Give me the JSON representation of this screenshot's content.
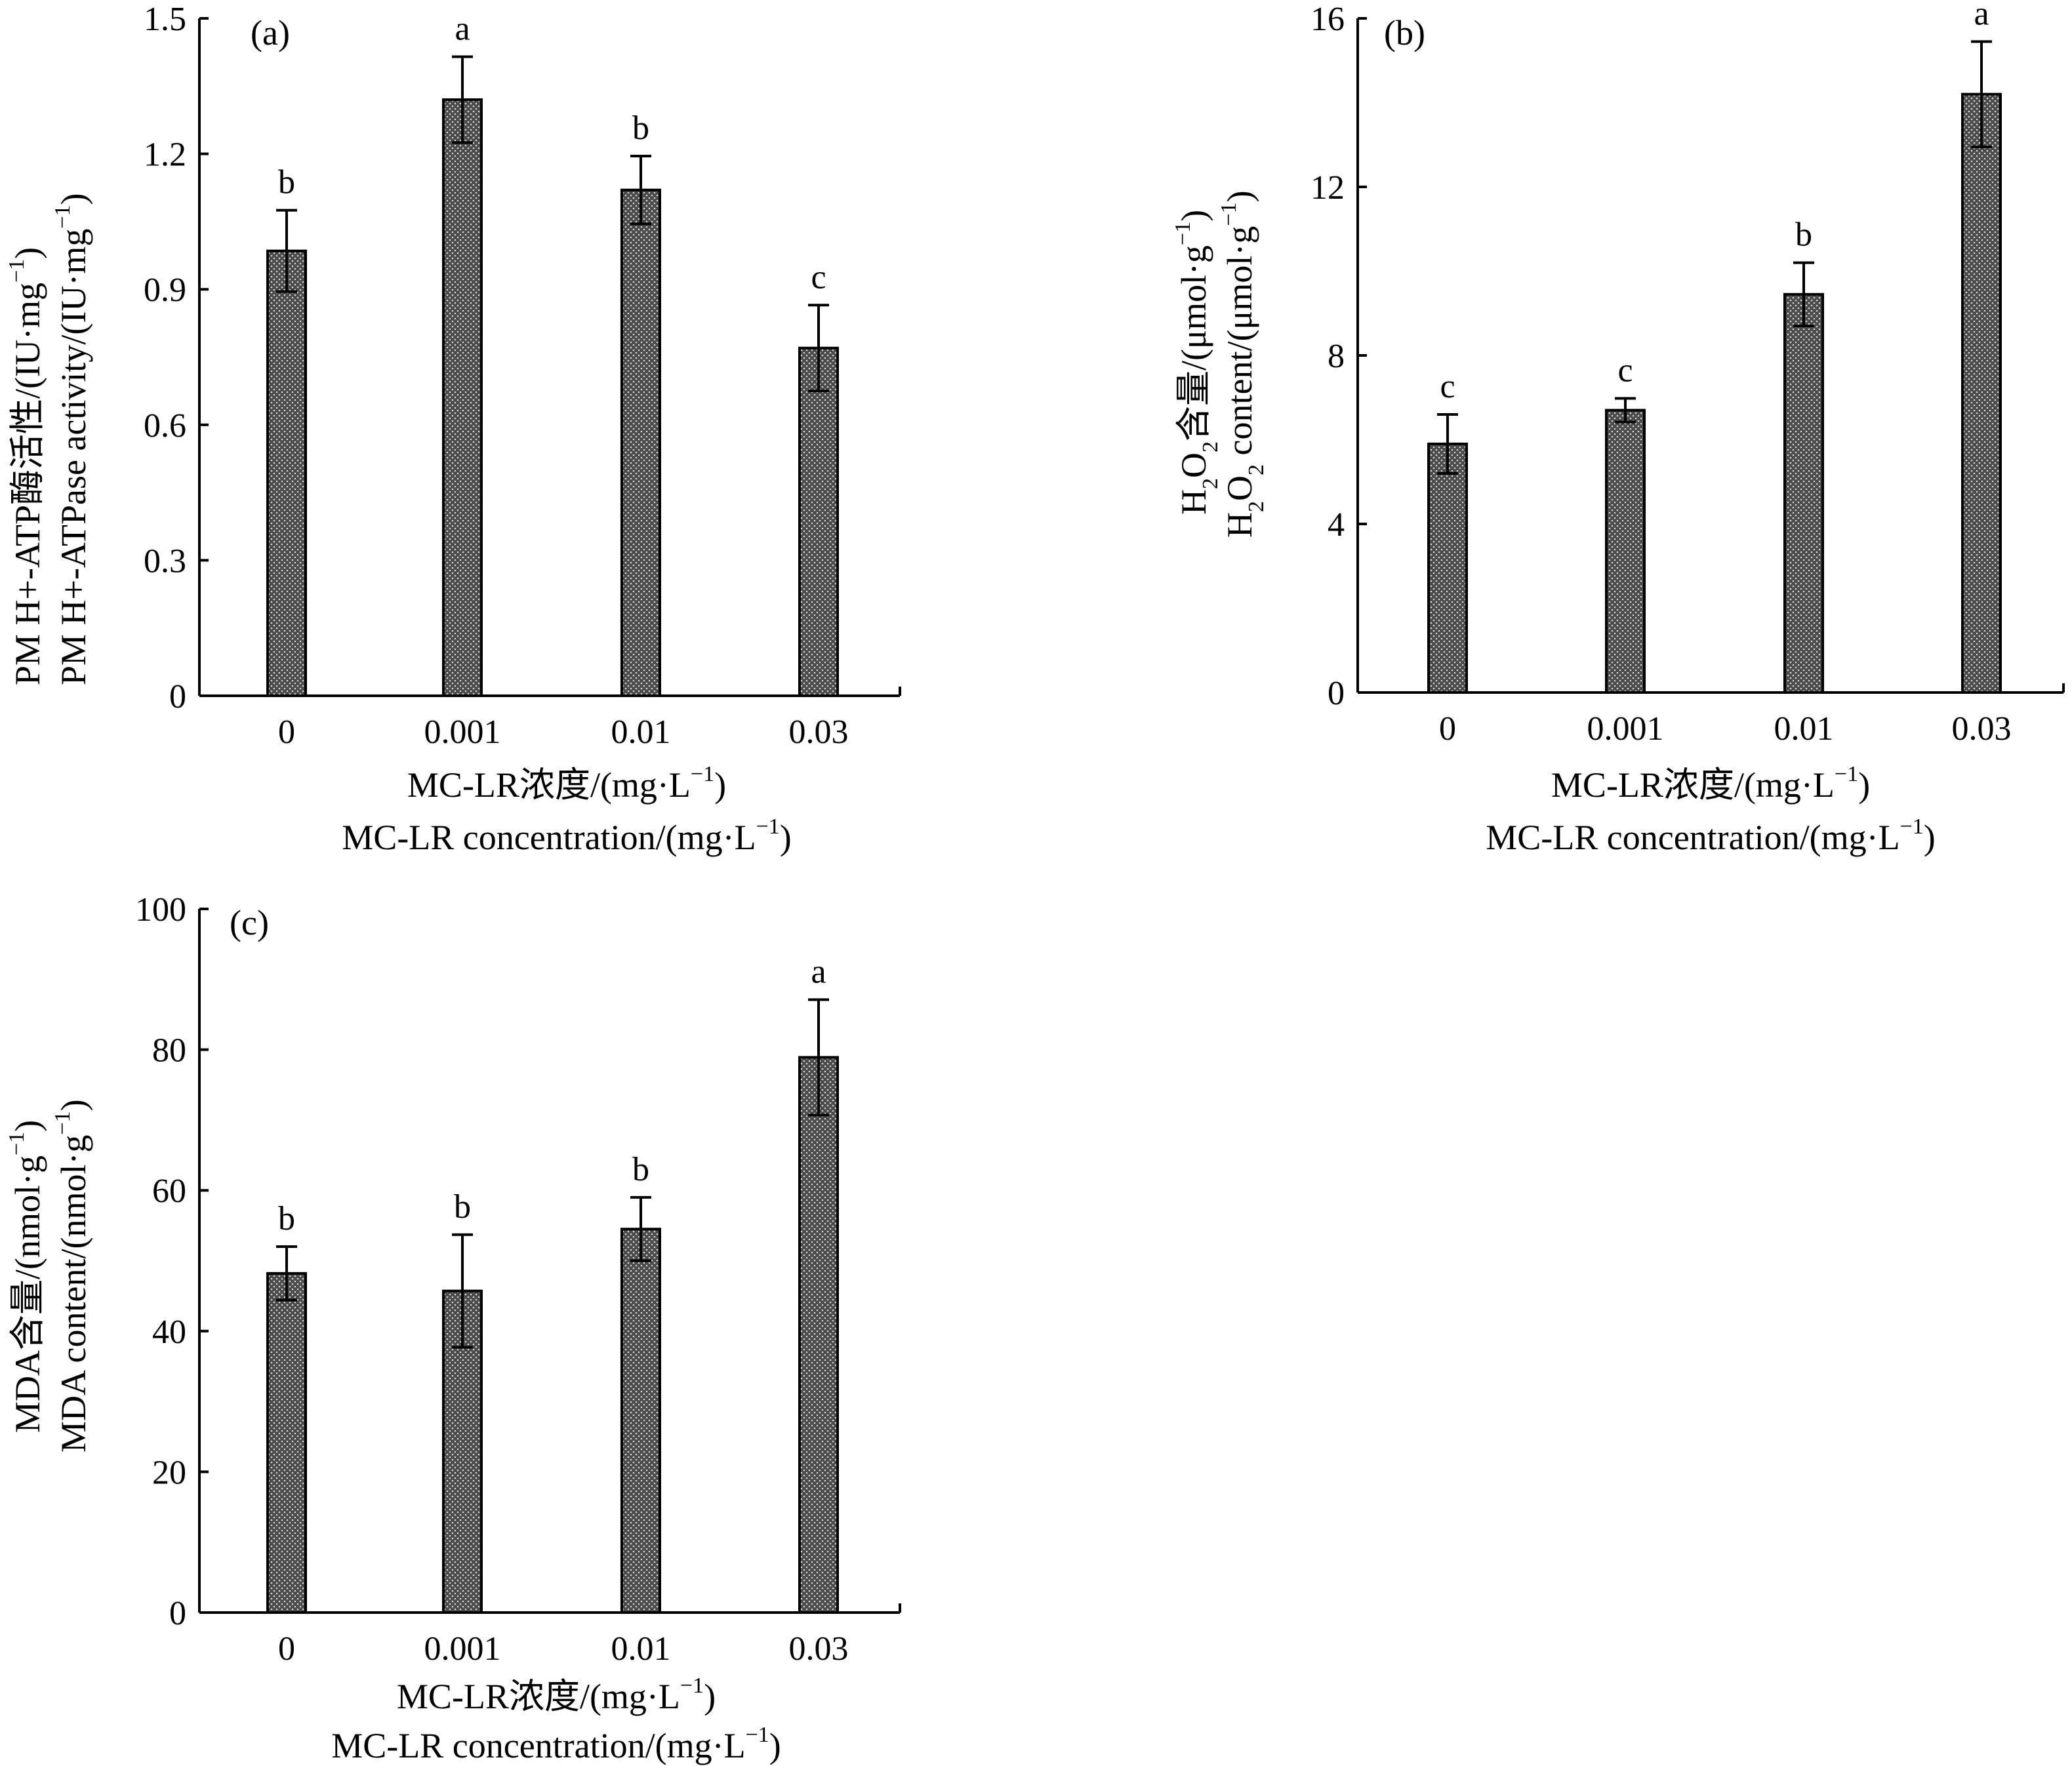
{
  "figure": {
    "x_title_cn": "MC-LR浓度/(mg·L",
    "x_title_en": "MC-LR concentration/(mg·L",
    "x_unit_exp": "−1",
    "close_paren": ")"
  },
  "chart_data": [
    {
      "type": "bar",
      "panel": "(a)",
      "categories": [
        "0",
        "0.001",
        "0.01",
        "0.03"
      ],
      "values": [
        0.985,
        1.32,
        1.12,
        0.77
      ],
      "errors": [
        0.09,
        0.095,
        0.075,
        0.095
      ],
      "significance": [
        "b",
        "a",
        "b",
        "c"
      ],
      "ylim": [
        0,
        1.5
      ],
      "yticks": [
        0,
        0.3,
        0.6,
        0.9,
        1.2,
        1.5
      ],
      "ytick_labels": [
        "0",
        "0.3",
        "0.6",
        "0.9",
        "1.2",
        "1.5"
      ],
      "ylabel_cn": "PM H+-ATP酶活性/(IU·mg",
      "ylabel_en": "PM H+-ATPase activity/(IU·mg",
      "ylabel_exp": "−1",
      "xlabel_cn": "MC-LR浓度/(mg·L−1)",
      "xlabel_en": "MC-LR concentration/(mg·L−1)"
    },
    {
      "type": "bar",
      "panel": "(b)",
      "categories": [
        "0",
        "0.001",
        "0.01",
        "0.03"
      ],
      "values": [
        5.9,
        6.7,
        9.45,
        14.2
      ],
      "errors": [
        0.7,
        0.28,
        0.75,
        1.25
      ],
      "significance": [
        "c",
        "c",
        "b",
        "a"
      ],
      "ylim": [
        0,
        16
      ],
      "yticks": [
        0,
        4,
        8,
        12,
        16
      ],
      "ytick_labels": [
        "0",
        "4",
        "8",
        "12",
        "16"
      ],
      "ylabel_cn": "H2O2含量/(μmol·g",
      "ylabel_en": "H2O2 content/(μmol·g",
      "ylabel_exp": "−1",
      "xlabel_cn": "MC-LR浓度/(mg·L−1)",
      "xlabel_en": "MC-LR concentration/(mg·L−1)"
    },
    {
      "type": "bar",
      "panel": "(c)",
      "categories": [
        "0",
        "0.001",
        "0.01",
        "0.03"
      ],
      "values": [
        48.2,
        45.7,
        54.5,
        78.9
      ],
      "errors": [
        3.8,
        8.0,
        4.5,
        8.2
      ],
      "significance": [
        "b",
        "b",
        "b",
        "a"
      ],
      "ylim": [
        0,
        100
      ],
      "yticks": [
        0,
        20,
        40,
        60,
        80,
        100
      ],
      "ytick_labels": [
        "0",
        "20",
        "40",
        "60",
        "80",
        "100"
      ],
      "ylabel_cn": "MDA含量/(nmol·g",
      "ylabel_en": "MDA content/(nmol·g",
      "ylabel_exp": "−1",
      "xlabel_cn": "MC-LR浓度/(mg·L−1)",
      "xlabel_en": "MC-LR concentration/(mg·L−1)"
    }
  ]
}
